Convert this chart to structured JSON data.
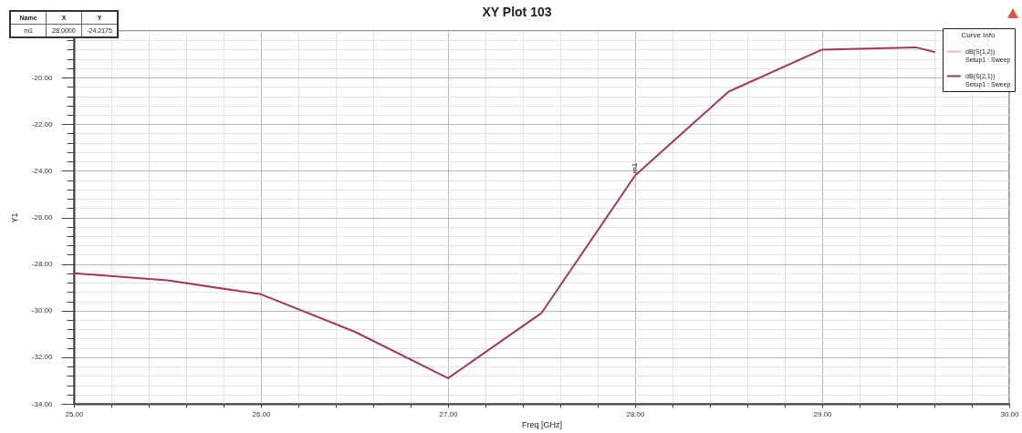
{
  "chart_data": {
    "type": "line",
    "title": "XY Plot 103",
    "xlabel": "Freq [GHz]",
    "ylabel": "Y1",
    "legend_title": "Curve Info",
    "x": [
      25,
      25.5,
      26,
      26.5,
      27,
      27.5,
      28,
      28.5,
      29,
      29.5,
      29.6
    ],
    "series": [
      {
        "name": "dB(S(1,2))\nSetup1 : Sweep",
        "color": "#ffadad",
        "values": [
          null,
          null,
          null,
          null,
          null,
          null,
          null,
          null,
          null,
          null,
          null
        ]
      },
      {
        "name": "dB(S(2,1))\nSetup1 : Sweep",
        "color": "#a03a5c",
        "values": [
          -28.4,
          -28.7,
          -29.3,
          -30.9,
          -32.9,
          -30.1,
          -24.2,
          -20.6,
          -18.8,
          -18.7,
          -18.9
        ]
      }
    ],
    "xlim": [
      25,
      30
    ],
    "xticks": [
      {
        "value": 25,
        "label": "25.00"
      },
      {
        "value": 25.2,
        "label": null
      },
      {
        "value": 25.4,
        "label": null
      },
      {
        "value": 25.6,
        "label": null
      },
      {
        "value": 25.8,
        "label": null
      },
      {
        "value": 26,
        "label": "26.00"
      },
      {
        "value": 26.2,
        "label": null
      },
      {
        "value": 26.4,
        "label": null
      },
      {
        "value": 26.6,
        "label": null
      },
      {
        "value": 26.8,
        "label": null
      },
      {
        "value": 27,
        "label": "27.00"
      },
      {
        "value": 27.2,
        "label": null
      },
      {
        "value": 27.4,
        "label": null
      },
      {
        "value": 27.6,
        "label": null
      },
      {
        "value": 27.8,
        "label": null
      },
      {
        "value": 28,
        "label": "28.00"
      },
      {
        "value": 28.2,
        "label": null
      },
      {
        "value": 28.4,
        "label": null
      },
      {
        "value": 28.6,
        "label": null
      },
      {
        "value": 28.8,
        "label": null
      },
      {
        "value": 29,
        "label": "29.00"
      },
      {
        "value": 29.2,
        "label": null
      },
      {
        "value": 29.4,
        "label": null
      },
      {
        "value": 29.6,
        "label": null
      },
      {
        "value": 29.8,
        "label": null
      },
      {
        "value": 30,
        "label": "30.00"
      }
    ],
    "ylim": [
      -34,
      -18
    ],
    "yticks": [
      {
        "value": -34,
        "label": "-34.00"
      },
      {
        "value": -33.6,
        "label": null
      },
      {
        "value": -33.2,
        "label": null
      },
      {
        "value": -32.8,
        "label": null
      },
      {
        "value": -32.4,
        "label": null
      },
      {
        "value": -32,
        "label": "-32.00"
      },
      {
        "value": -31.6,
        "label": null
      },
      {
        "value": -31.2,
        "label": null
      },
      {
        "value": -30.8,
        "label": null
      },
      {
        "value": -30.4,
        "label": null
      },
      {
        "value": -30,
        "label": "-30.00"
      },
      {
        "value": -29.6,
        "label": null
      },
      {
        "value": -29.2,
        "label": null
      },
      {
        "value": -28.8,
        "label": null
      },
      {
        "value": -28.4,
        "label": null
      },
      {
        "value": -28,
        "label": "-28.00"
      },
      {
        "value": -27.6,
        "label": null
      },
      {
        "value": -27.2,
        "label": null
      },
      {
        "value": -26.8,
        "label": null
      },
      {
        "value": -26.4,
        "label": null
      },
      {
        "value": -26,
        "label": "-26.00"
      },
      {
        "value": -25.6,
        "label": null
      },
      {
        "value": -25.2,
        "label": null
      },
      {
        "value": -24.8,
        "label": null
      },
      {
        "value": -24.4,
        "label": null
      },
      {
        "value": -24,
        "label": "-24.00"
      },
      {
        "value": -23.6,
        "label": null
      },
      {
        "value": -23.2,
        "label": null
      },
      {
        "value": -22.8,
        "label": null
      },
      {
        "value": -22.4,
        "label": null
      },
      {
        "value": -22,
        "label": "-22.00"
      },
      {
        "value": -21.6,
        "label": null
      },
      {
        "value": -21.2,
        "label": null
      },
      {
        "value": -20.8,
        "label": null
      },
      {
        "value": -20.4,
        "label": null
      },
      {
        "value": -20,
        "label": "-20.00"
      },
      {
        "value": -19.6,
        "label": null
      },
      {
        "value": -19.2,
        "label": null
      },
      {
        "value": -18.8,
        "label": null
      },
      {
        "value": -18.4,
        "label": null
      },
      {
        "value": -18,
        "label": null
      }
    ],
    "grid": true,
    "legend": "top right",
    "annotations": [
      {
        "text": "m1",
        "x": 28,
        "y": -24.2175
      },
      "Name",
      "X",
      "Y",
      "m1",
      "28.0000",
      "-24.2175"
    ]
  }
}
